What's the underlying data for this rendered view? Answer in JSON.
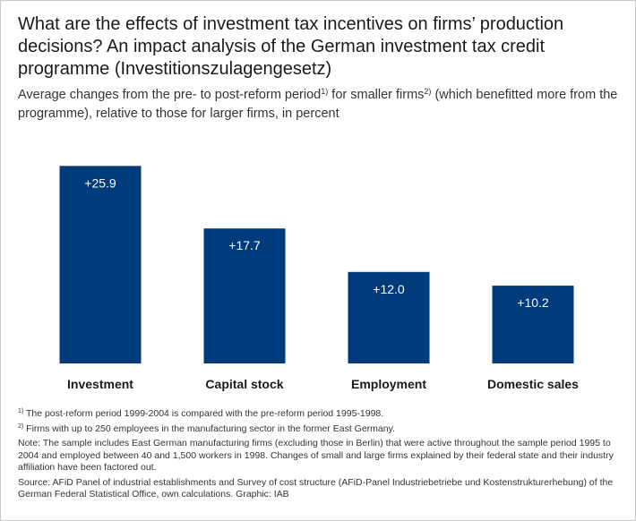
{
  "title": "What are the effects of investment tax incentives on firms’ production decisions? An impact analysis of the German investment tax credit programme (Investitionszulagengesetz)",
  "subtitle": {
    "part1": "Average changes from the pre- to post-reform period",
    "sup1": "1)",
    "part2": " for smaller firms",
    "sup2": "2)",
    "part3": " (which benefitted more from the programme), relative to those for larger firms, in percent"
  },
  "chart_data": {
    "type": "bar",
    "categories": [
      "Investment",
      "Capital stock",
      "Employment",
      "Domestic sales"
    ],
    "values": [
      25.9,
      17.7,
      12.0,
      10.2
    ],
    "data_labels": [
      "+25.9",
      "+17.7",
      "+12.0",
      "+10.2"
    ],
    "ylabel": "",
    "ylim": [
      0,
      27
    ],
    "grid": false,
    "bar_color": "#003b7c",
    "label_color": "#ffffff"
  },
  "footnotes": {
    "fn1_mark": "1)",
    "fn1_text": " The post-reform period 1999-2004 is compared with the pre-reform period 1995-1998.",
    "fn2_mark": "2)",
    "fn2_text": " Firms with up to 250 employees in the manufacturing sector in the former East Germany.",
    "note": "Note: The sample includes East German manufacturing firms (excluding those in Berlin) that were active throughout the sample period 1995 to 2004 and employed between 40 and 1,500 workers in 1998. Changes of small and large firms explained by their federal state and their industry affiliation have been factored out.",
    "source": "Source: AFiD Panel of industrial establishments and Survey of cost structure (AFiD-Panel Industriebetriebe und Kostenstrukturerhebung) of the German Federal Statistical Office, own calculations. Graphic: IAB"
  }
}
